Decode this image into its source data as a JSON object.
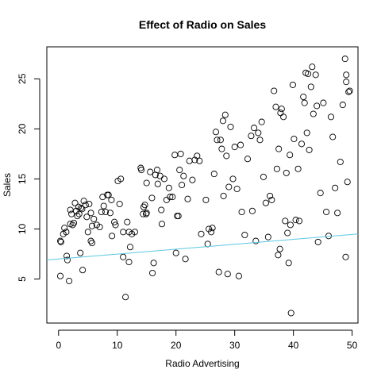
{
  "chart_data": {
    "type": "scatter",
    "title": "Effect of Radio on Sales",
    "xlabel": "Radio Advertising",
    "ylabel": "Sales",
    "xlim": [
      -2,
      51
    ],
    "ylim": [
      0.6,
      28.2
    ],
    "x_ticks": [
      0,
      10,
      20,
      30,
      40,
      50
    ],
    "y_ticks": [
      5,
      10,
      15,
      20,
      25
    ],
    "grid": false,
    "legend": "none",
    "point_color": "#000000",
    "fit_line": {
      "color": "#5bc7e0",
      "intercept": 7.0,
      "slope": 0.049,
      "x_range": [
        -2,
        51
      ]
    },
    "points": [
      [
        0.3,
        8.8
      ],
      [
        0.4,
        8.7
      ],
      [
        0.3,
        5.3
      ],
      [
        0.8,
        9.5
      ],
      [
        1.0,
        10.1
      ],
      [
        1.3,
        9.7
      ],
      [
        1.4,
        7.3
      ],
      [
        1.5,
        6.9
      ],
      [
        1.8,
        4.8
      ],
      [
        2.0,
        10.5
      ],
      [
        2.0,
        11.9
      ],
      [
        2.2,
        11.5
      ],
      [
        2.4,
        10.4
      ],
      [
        2.6,
        10.6
      ],
      [
        2.8,
        12.6
      ],
      [
        3.0,
        11.8
      ],
      [
        3.2,
        11.3
      ],
      [
        3.4,
        12.2
      ],
      [
        3.5,
        11.5
      ],
      [
        3.7,
        7.6
      ],
      [
        3.8,
        12.1
      ],
      [
        4.0,
        12.0
      ],
      [
        4.1,
        5.9
      ],
      [
        4.3,
        12.8
      ],
      [
        4.6,
        12.4
      ],
      [
        4.8,
        11.2
      ],
      [
        5.0,
        9.7
      ],
      [
        5.2,
        12.5
      ],
      [
        5.5,
        11.6
      ],
      [
        5.7,
        10.3
      ],
      [
        5.5,
        8.8
      ],
      [
        5.7,
        8.6
      ],
      [
        6.0,
        11.0
      ],
      [
        6.5,
        10.4
      ],
      [
        7.0,
        10.2
      ],
      [
        7.3,
        11.7
      ],
      [
        7.5,
        13.2
      ],
      [
        7.7,
        12.3
      ],
      [
        8.0,
        11.7
      ],
      [
        8.3,
        13.4
      ],
      [
        8.5,
        13.4
      ],
      [
        8.8,
        11.6
      ],
      [
        9.0,
        12.9
      ],
      [
        9.1,
        9.3
      ],
      [
        9.5,
        10.7
      ],
      [
        9.7,
        10.4
      ],
      [
        10.1,
        14.8
      ],
      [
        10.4,
        12.5
      ],
      [
        10.6,
        15.0
      ],
      [
        11.0,
        9.7
      ],
      [
        11.0,
        7.2
      ],
      [
        11.4,
        3.2
      ],
      [
        11.7,
        10.7
      ],
      [
        12.0,
        9.7
      ],
      [
        12.2,
        8.2
      ],
      [
        12.5,
        9.5
      ],
      [
        12.0,
        6.7
      ],
      [
        13.0,
        9.7
      ],
      [
        14.0,
        16.1
      ],
      [
        14.1,
        15.9
      ],
      [
        14.4,
        11.5
      ],
      [
        14.5,
        12.2
      ],
      [
        14.7,
        12.4
      ],
      [
        14.9,
        11.5
      ],
      [
        15.0,
        14.6
      ],
      [
        15.0,
        11.6
      ],
      [
        15.6,
        15.7
      ],
      [
        15.9,
        13.1
      ],
      [
        16.0,
        5.6
      ],
      [
        16.2,
        6.6
      ],
      [
        16.5,
        15.4
      ],
      [
        16.8,
        15.9
      ],
      [
        16.9,
        14.5
      ],
      [
        17.3,
        15.3
      ],
      [
        17.5,
        11.9
      ],
      [
        17.6,
        10.5
      ],
      [
        18.0,
        15.0
      ],
      [
        18.4,
        12.9
      ],
      [
        18.8,
        14.1
      ],
      [
        19.0,
        13.2
      ],
      [
        19.4,
        13.2
      ],
      [
        19.8,
        17.4
      ],
      [
        20.0,
        7.6
      ],
      [
        20.2,
        11.3
      ],
      [
        20.4,
        11.3
      ],
      [
        20.6,
        15.9
      ],
      [
        20.8,
        17.5
      ],
      [
        21.0,
        14.4
      ],
      [
        21.3,
        15.3
      ],
      [
        21.6,
        7.0
      ],
      [
        22.0,
        13.0
      ],
      [
        22.3,
        16.8
      ],
      [
        22.8,
        14.9
      ],
      [
        23.2,
        16.9
      ],
      [
        23.6,
        17.3
      ],
      [
        24.0,
        16.8
      ],
      [
        24.3,
        9.5
      ],
      [
        25.1,
        12.9
      ],
      [
        25.4,
        8.5
      ],
      [
        25.6,
        10.0
      ],
      [
        26.0,
        9.7
      ],
      [
        26.2,
        10.1
      ],
      [
        26.5,
        15.5
      ],
      [
        26.8,
        19.7
      ],
      [
        27.0,
        18.9
      ],
      [
        27.3,
        5.7
      ],
      [
        27.6,
        18.9
      ],
      [
        27.8,
        18.0
      ],
      [
        28.0,
        20.8
      ],
      [
        28.1,
        13.3
      ],
      [
        28.4,
        21.4
      ],
      [
        28.6,
        17.3
      ],
      [
        28.8,
        5.5
      ],
      [
        29.0,
        14.2
      ],
      [
        29.3,
        20.2
      ],
      [
        29.7,
        15.0
      ],
      [
        30.0,
        18.2
      ],
      [
        30.4,
        14.0
      ],
      [
        30.7,
        5.3
      ],
      [
        31.0,
        18.4
      ],
      [
        31.2,
        11.7
      ],
      [
        31.7,
        9.4
      ],
      [
        32.2,
        17.0
      ],
      [
        32.8,
        19.3
      ],
      [
        33.0,
        11.8
      ],
      [
        33.3,
        20.1
      ],
      [
        33.6,
        8.8
      ],
      [
        34.0,
        19.6
      ],
      [
        34.3,
        18.9
      ],
      [
        34.6,
        20.7
      ],
      [
        34.9,
        15.2
      ],
      [
        35.3,
        12.6
      ],
      [
        35.7,
        9.2
      ],
      [
        36.0,
        13.3
      ],
      [
        36.3,
        12.9
      ],
      [
        36.7,
        23.8
      ],
      [
        37.0,
        22.2
      ],
      [
        37.2,
        16.0
      ],
      [
        37.4,
        7.4
      ],
      [
        37.5,
        18.0
      ],
      [
        37.7,
        8.0
      ],
      [
        37.8,
        21.6
      ],
      [
        38.0,
        22.0
      ],
      [
        38.3,
        21.2
      ],
      [
        38.6,
        10.8
      ],
      [
        38.8,
        15.6
      ],
      [
        39.0,
        9.6
      ],
      [
        39.2,
        6.6
      ],
      [
        39.4,
        17.4
      ],
      [
        39.5,
        10.4
      ],
      [
        39.6,
        1.6
      ],
      [
        39.9,
        24.4
      ],
      [
        40.1,
        19.0
      ],
      [
        40.4,
        10.9
      ],
      [
        40.8,
        16.0
      ],
      [
        41.0,
        10.8
      ],
      [
        41.4,
        18.5
      ],
      [
        41.7,
        23.2
      ],
      [
        41.9,
        22.6
      ],
      [
        42.1,
        25.6
      ],
      [
        42.3,
        19.6
      ],
      [
        42.5,
        25.5
      ],
      [
        42.7,
        17.9
      ],
      [
        43.0,
        24.2
      ],
      [
        43.2,
        26.2
      ],
      [
        43.4,
        21.5
      ],
      [
        43.8,
        25.4
      ],
      [
        44.0,
        22.3
      ],
      [
        44.2,
        8.7
      ],
      [
        44.6,
        13.6
      ],
      [
        45.1,
        22.6
      ],
      [
        45.6,
        11.7
      ],
      [
        46.0,
        9.3
      ],
      [
        46.4,
        21.2
      ],
      [
        46.7,
        19.2
      ],
      [
        47.1,
        14.1
      ],
      [
        47.5,
        11.6
      ],
      [
        48.0,
        16.7
      ],
      [
        48.4,
        22.4
      ],
      [
        48.8,
        27.0
      ],
      [
        48.9,
        7.2
      ],
      [
        49.0,
        25.4
      ],
      [
        49.0,
        24.7
      ],
      [
        49.2,
        14.7
      ],
      [
        49.4,
        23.7
      ],
      [
        49.6,
        23.8
      ]
    ]
  }
}
